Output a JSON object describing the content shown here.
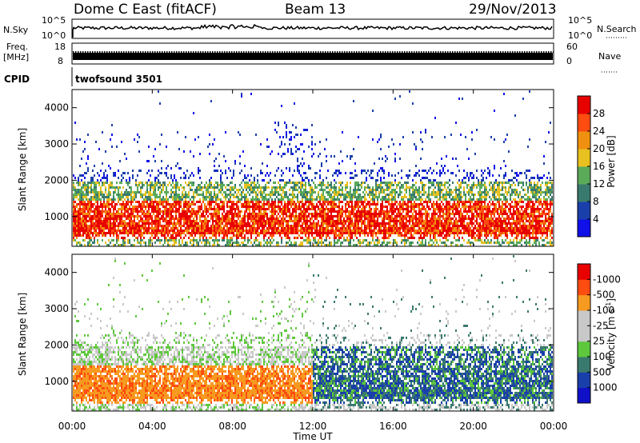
{
  "header": {
    "radar": "Dome C East (fitACF)",
    "beam": "Beam 13",
    "date": "29/Nov/2013"
  },
  "top_panels": {
    "nsky_label": "N.Sky",
    "nsky_ticks": [
      "10^5",
      "10^0"
    ],
    "nsearch_label": "N.Search",
    "nsearch_ticks": [
      "10^5",
      "10^0"
    ],
    "freq_label_line1": "Freq.",
    "freq_label_line2": "[MHz]",
    "freq_ticks": [
      "18",
      "8"
    ],
    "nave_label": "Nave",
    "nave_ticks": [
      "60",
      "0"
    ],
    "cpid_label": "CPID",
    "cpid_text": "twofsound 3501"
  },
  "colors": {
    "power_scale": [
      "#1010e8",
      "#1a3faa",
      "#3a7a6e",
      "#5aaa5a",
      "#e8c020",
      "#f09010",
      "#ff4c10",
      "#e80000"
    ],
    "velocity_scale": [
      "#e80000",
      "#ff4c10",
      "#f79a20",
      "#c8c8c8",
      "#c8c8c8",
      "#5ec83c",
      "#3a7a6e",
      "#1a3faa",
      "#1010c8"
    ]
  },
  "chart_data": [
    {
      "type": "heatmap",
      "name": "power",
      "ylabel": "Slant Range [km]",
      "yticks": [
        "1000",
        "2000",
        "3000",
        "4000"
      ],
      "ylim": [
        180,
        4500
      ],
      "colorbar_label": "Power [dB]",
      "colorbar_ticks": [
        "4",
        "8",
        "12",
        "16",
        "20",
        "24",
        "28"
      ],
      "colorbar_range": [
        0,
        32
      ]
    },
    {
      "type": "heatmap",
      "name": "velocity",
      "ylabel": "Slant Range [km]",
      "yticks": [
        "1000",
        "2000",
        "3000",
        "4000"
      ],
      "ylim": [
        180,
        4500
      ],
      "colorbar_label": "Velocity [m s",
      "colorbar_label_sup": "-1",
      "colorbar_label_end": "]",
      "colorbar_ticks": [
        "1000",
        "500",
        "100",
        "25",
        "-25",
        "-100",
        "-500",
        "-1000"
      ]
    }
  ],
  "xaxis": {
    "label": "Time UT",
    "ticks": [
      "00:00",
      "04:00",
      "08:00",
      "12:00",
      "16:00",
      "20:00",
      "00:00"
    ]
  }
}
